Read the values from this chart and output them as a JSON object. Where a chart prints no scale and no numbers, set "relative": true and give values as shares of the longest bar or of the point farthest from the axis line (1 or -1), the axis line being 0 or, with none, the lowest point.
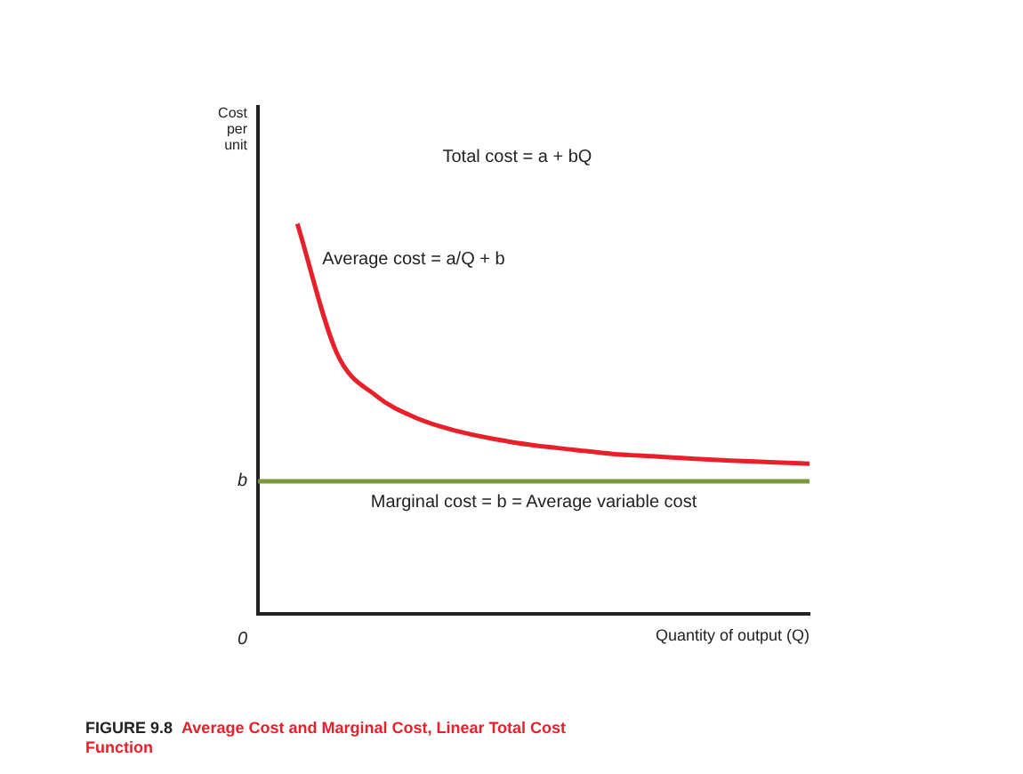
{
  "chart_data": {
    "type": "line",
    "relative": true,
    "title": "Average Cost and Marginal Cost, Linear Total Cost Function",
    "xlabel": "Quantity of output (Q)",
    "ylabel": "Cost per unit",
    "annotations": [
      "Total cost = a + bQ",
      "FIGURE 9.8",
      "b",
      "0"
    ],
    "categories": [
      null,
      null,
      null,
      null,
      null,
      null,
      null,
      null,
      null,
      null,
      null,
      null,
      null,
      null,
      null
    ],
    "series": [
      {
        "name": "Average cost = a/Q + b",
        "color": "#e8202a",
        "values": [
          null,
          1.0,
          0.669,
          0.559,
          0.503,
          0.47,
          0.448,
          0.432,
          0.421,
          0.41,
          0.404,
          0.398,
          0.393,
          0.389,
          0.385
        ]
      },
      {
        "name": "Marginal cost = b = Average variable cost",
        "color": "#7a9a3a",
        "values": [
          0.34,
          0.34,
          0.34,
          0.34,
          0.34,
          0.34,
          0.34,
          0.34,
          0.34,
          0.34,
          0.34,
          0.34,
          0.34,
          0.34,
          0.34
        ]
      }
    ],
    "legend": false,
    "grid": false,
    "marker": "none",
    "line_style": "solid"
  }
}
